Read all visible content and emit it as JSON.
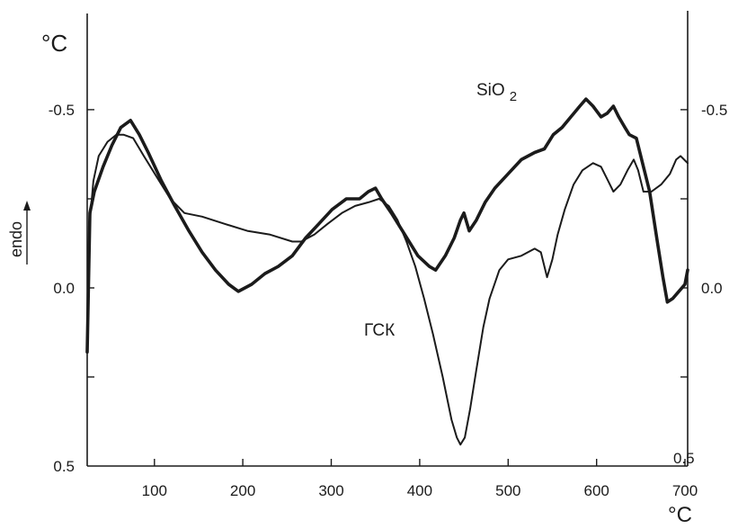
{
  "chart_data": {
    "type": "line",
    "xlabel": "°C",
    "ylabel": "°C",
    "xlim": [
      24,
      703
    ],
    "ylim": [
      -0.77,
      0.5
    ],
    "y_inverted": true,
    "grid": false,
    "x_ticks": [
      100,
      200,
      300,
      400,
      500,
      600,
      700
    ],
    "x_tick_labels": [
      "100",
      "200",
      "300",
      "400",
      "500",
      "600",
      "700"
    ],
    "y_ticks": [
      {
        "value": -0.5,
        "label": "-0.5"
      },
      {
        "value": 0.0,
        "label": "0.0"
      },
      {
        "value": 0.5,
        "label": "0.5"
      }
    ],
    "right_y_ticks": [
      {
        "value": -0.5,
        "label": "-0.5"
      },
      {
        "value": 0.0,
        "label": "0.0"
      },
      {
        "value": 0.5,
        "label": "0.5"
      }
    ],
    "y_tick_marks": [
      -0.5,
      -0.25,
      0.0,
      0.25
    ],
    "annotations": [
      "endo"
    ],
    "colors": {
      "ink": "#1b1b1b",
      "background": "#ffffff"
    },
    "series": [
      {
        "name": "SiO2",
        "x": [
          24,
          27,
          32,
          42,
          52,
          62,
          73,
          83,
          93,
          108,
          123,
          139,
          154,
          169,
          184,
          195,
          210,
          225,
          240,
          256,
          271,
          286,
          301,
          317,
          332,
          342,
          350,
          357,
          368,
          383,
          398,
          411,
          418,
          429,
          439,
          446,
          450,
          456,
          464,
          474,
          485,
          500,
          515,
          530,
          541,
          551,
          561,
          571,
          581,
          588,
          596,
          605,
          612,
          619,
          625,
          632,
          637,
          645,
          652,
          660,
          668,
          675,
          680,
          686,
          693,
          700,
          703
        ],
        "y": [
          0.18,
          -0.21,
          -0.27,
          -0.34,
          -0.4,
          -0.45,
          -0.47,
          -0.43,
          -0.38,
          -0.3,
          -0.23,
          -0.16,
          -0.1,
          -0.05,
          -0.01,
          0.01,
          -0.01,
          -0.04,
          -0.06,
          -0.09,
          -0.14,
          -0.18,
          -0.22,
          -0.25,
          -0.25,
          -0.27,
          -0.28,
          -0.25,
          -0.21,
          -0.15,
          -0.09,
          -0.06,
          -0.05,
          -0.09,
          -0.14,
          -0.19,
          -0.21,
          -0.16,
          -0.19,
          -0.24,
          -0.28,
          -0.32,
          -0.36,
          -0.38,
          -0.39,
          -0.43,
          -0.45,
          -0.48,
          -0.51,
          -0.53,
          -0.51,
          -0.48,
          -0.49,
          -0.51,
          -0.48,
          -0.45,
          -0.43,
          -0.42,
          -0.35,
          -0.27,
          -0.14,
          -0.03,
          0.04,
          0.03,
          0.01,
          -0.01,
          -0.05
        ]
      },
      {
        "name": "ГСК",
        "x": [
          27,
          31,
          37,
          47,
          57,
          65,
          76,
          88,
          103,
          118,
          134,
          154,
          179,
          205,
          230,
          256,
          266,
          281,
          296,
          312,
          327,
          342,
          354,
          365,
          375,
          385,
          395,
          405,
          415,
          426,
          436,
          442,
          446,
          451,
          457,
          464,
          472,
          479,
          490,
          500,
          515,
          530,
          537,
          544,
          550,
          556,
          564,
          574,
          584,
          596,
          605,
          613,
          619,
          627,
          635,
          642,
          647,
          653,
          662,
          673,
          683,
          690,
          695,
          703
        ],
        "y": [
          -0.19,
          -0.3,
          -0.37,
          -0.41,
          -0.43,
          -0.43,
          -0.42,
          -0.37,
          -0.31,
          -0.25,
          -0.21,
          -0.2,
          -0.18,
          -0.16,
          -0.15,
          -0.13,
          -0.13,
          -0.15,
          -0.18,
          -0.21,
          -0.23,
          -0.24,
          -0.25,
          -0.23,
          -0.19,
          -0.13,
          -0.06,
          0.03,
          0.13,
          0.25,
          0.37,
          0.42,
          0.44,
          0.42,
          0.34,
          0.23,
          0.11,
          0.03,
          -0.05,
          -0.08,
          -0.09,
          -0.11,
          -0.1,
          -0.03,
          -0.08,
          -0.15,
          -0.22,
          -0.29,
          -0.33,
          -0.35,
          -0.34,
          -0.3,
          -0.27,
          -0.29,
          -0.33,
          -0.36,
          -0.33,
          -0.27,
          -0.27,
          -0.29,
          -0.32,
          -0.36,
          -0.37,
          -0.35
        ]
      }
    ]
  }
}
